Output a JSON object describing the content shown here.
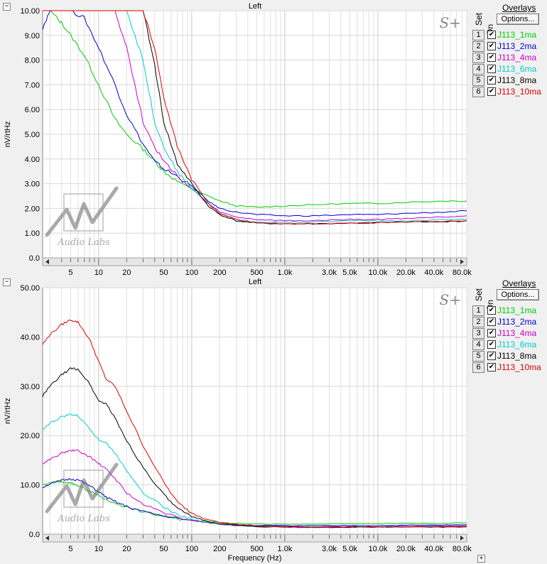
{
  "panels": [
    {
      "title": "Left",
      "collapse_symbol": "−",
      "ylabel": "nV/rtHz",
      "y_ticks": [
        "10.00",
        "9.00",
        "8.00",
        "7.00",
        "6.00",
        "5.00",
        "4.00",
        "3.00",
        "2.00",
        "1.00",
        "0.0"
      ],
      "x_ticks": [
        "5",
        "10",
        "20",
        "50",
        "100",
        "200",
        "500",
        "1.0k",
        "3.0k",
        "5.0k",
        "10.0k",
        "20.0k",
        "40.0k",
        "80.0k"
      ],
      "xlabel": "",
      "brand": "S+",
      "watermark_text": "Audio Labs"
    },
    {
      "title": "Left",
      "collapse_symbol": "−",
      "ylabel": "nV/rtHz",
      "y_ticks": [
        "50.00",
        "40.00",
        "30.00",
        "20.00",
        "10.00",
        "0.0"
      ],
      "x_ticks": [
        "5",
        "10",
        "20",
        "50",
        "100",
        "200",
        "500",
        "1.0k",
        "3.0k",
        "5.0k",
        "10.0k",
        "20.0k",
        "40.0k",
        "80.0k"
      ],
      "xlabel": "Frequency (Hz)",
      "brand": "S+",
      "watermark_text": "Audio Labs"
    }
  ],
  "overlays": {
    "title": "Overlays",
    "set_label": "Set",
    "on_label": "On",
    "options_label": "Options...",
    "check_mark": "✔",
    "sets": [
      {
        "num": "1",
        "name": "J113_1ma",
        "color": "#00cc00"
      },
      {
        "num": "2",
        "name": "J113_2ma",
        "color": "#0000cc"
      },
      {
        "num": "3",
        "name": "J113_4ma",
        "color": "#cc00cc"
      },
      {
        "num": "4",
        "name": "J113_6ma",
        "color": "#00cccc"
      },
      {
        "num": "5",
        "name": "J113_8ma",
        "color": "#000000"
      },
      {
        "num": "6",
        "name": "J113_10ma",
        "color": "#dd0000"
      }
    ]
  },
  "corner_symbol": "+",
  "chart_data": [
    {
      "type": "line",
      "title": "Left",
      "xlabel": "",
      "ylabel": "nV/rtHz",
      "xscale": "log",
      "xlim": [
        2.5,
        90000
      ],
      "ylim": [
        0,
        10
      ],
      "grid": true,
      "legend": "right side panel",
      "x": [
        2.5,
        3,
        4,
        5,
        7,
        10,
        15,
        20,
        30,
        40,
        50,
        70,
        100,
        150,
        200,
        300,
        500,
        1000,
        2000,
        5000,
        10000,
        20000,
        50000,
        90000
      ],
      "series": [
        {
          "name": "J113_1ma",
          "color": "#00cc00",
          "values": [
            10,
            10,
            9.5,
            9.0,
            8.2,
            7.0,
            5.6,
            5.0,
            4.4,
            3.9,
            3.5,
            3.1,
            2.8,
            2.5,
            2.3,
            2.1,
            2.05,
            2.1,
            2.15,
            2.2,
            2.2,
            2.25,
            2.3,
            2.3
          ]
        },
        {
          "name": "J113_2ma",
          "color": "#0000cc",
          "values": [
            9.3,
            10,
            10,
            10,
            9.7,
            8.5,
            7.0,
            5.8,
            4.6,
            3.9,
            3.6,
            3.3,
            2.9,
            2.3,
            2.0,
            1.85,
            1.75,
            1.7,
            1.7,
            1.75,
            1.75,
            1.8,
            1.85,
            1.9
          ]
        },
        {
          "name": "J113_4ma",
          "color": "#cc00cc",
          "values": [
            10,
            10,
            10,
            10,
            10,
            10,
            10,
            8.5,
            5.5,
            4.5,
            3.9,
            3.3,
            2.8,
            2.2,
            1.85,
            1.65,
            1.55,
            1.5,
            1.5,
            1.55,
            1.55,
            1.6,
            1.65,
            1.7
          ]
        },
        {
          "name": "J113_6ma",
          "color": "#00cccc",
          "values": [
            10,
            10,
            10,
            10,
            10,
            10,
            10,
            10,
            8.0,
            5.5,
            4.5,
            3.5,
            2.8,
            2.2,
            1.8,
            1.55,
            1.45,
            1.45,
            1.45,
            1.5,
            1.5,
            1.5,
            1.55,
            1.55
          ]
        },
        {
          "name": "J113_8ma",
          "color": "#000000",
          "values": [
            10,
            10,
            10,
            10,
            10,
            10,
            10,
            10,
            10,
            7.8,
            5.5,
            3.8,
            3.0,
            2.1,
            1.75,
            1.5,
            1.4,
            1.38,
            1.38,
            1.4,
            1.42,
            1.45,
            1.45,
            1.5
          ]
        },
        {
          "name": "J113_10ma",
          "color": "#dd0000",
          "values": [
            10,
            10,
            10,
            10,
            10,
            10,
            10,
            10,
            10,
            8.5,
            6.5,
            4.5,
            3.2,
            2.2,
            1.8,
            1.55,
            1.42,
            1.38,
            1.38,
            1.4,
            1.42,
            1.45,
            1.48,
            1.5
          ]
        }
      ]
    },
    {
      "type": "line",
      "title": "Left",
      "xlabel": "Frequency (Hz)",
      "ylabel": "nV/rtHz",
      "xscale": "log",
      "xlim": [
        2.5,
        90000
      ],
      "ylim": [
        0,
        50
      ],
      "grid": true,
      "legend": "right side panel",
      "x": [
        2.5,
        3,
        4,
        5,
        6,
        8,
        10,
        12,
        15,
        20,
        30,
        50,
        70,
        100,
        150,
        200,
        300,
        500,
        1000,
        2000,
        5000,
        10000,
        20000,
        50000,
        90000
      ],
      "series": [
        {
          "name": "J113_1ma",
          "color": "#00cc00",
          "values": [
            10.0,
            10.3,
            10.6,
            10.4,
            9.8,
            8.8,
            7.8,
            7.0,
            6.3,
            5.5,
            4.5,
            3.6,
            3.1,
            2.8,
            2.6,
            2.4,
            2.2,
            2.1,
            2.0,
            2.05,
            2.1,
            2.15,
            2.2,
            2.2,
            2.3
          ]
        },
        {
          "name": "J113_2ma",
          "color": "#0000cc",
          "values": [
            9.5,
            10.2,
            10.9,
            11.2,
            11.0,
            9.8,
            8.6,
            7.5,
            6.6,
            5.6,
            4.6,
            3.7,
            3.2,
            2.8,
            2.4,
            2.1,
            1.9,
            1.8,
            1.7,
            1.7,
            1.75,
            1.75,
            1.8,
            1.85,
            1.9
          ]
        },
        {
          "name": "J113_4ma",
          "color": "#cc00cc",
          "values": [
            14.3,
            15.2,
            16.4,
            17.0,
            16.9,
            15.7,
            14.3,
            13.2,
            11.3,
            8.4,
            6.0,
            4.4,
            3.4,
            2.8,
            2.3,
            2.0,
            1.8,
            1.65,
            1.55,
            1.5,
            1.55,
            1.55,
            1.6,
            1.65,
            1.7
          ]
        },
        {
          "name": "J113_6ma",
          "color": "#00cccc",
          "values": [
            21.3,
            22.5,
            23.8,
            24.3,
            24.0,
            21.5,
            19.2,
            18.5,
            16.5,
            13.0,
            8.5,
            5.5,
            4.0,
            3.0,
            2.4,
            2.0,
            1.75,
            1.55,
            1.45,
            1.45,
            1.5,
            1.5,
            1.5,
            1.55,
            1.55
          ]
        },
        {
          "name": "J113_8ma",
          "color": "#000000",
          "values": [
            28.0,
            30.0,
            32.3,
            33.6,
            33.5,
            30.5,
            27.0,
            26.5,
            23.5,
            19.0,
            13.5,
            8.0,
            5.2,
            3.5,
            2.6,
            2.1,
            1.8,
            1.55,
            1.4,
            1.38,
            1.4,
            1.42,
            1.45,
            1.45,
            1.5
          ]
        },
        {
          "name": "J113_10ma",
          "color": "#dd0000",
          "values": [
            38.5,
            40.5,
            42.5,
            43.5,
            43.0,
            39.5,
            35.0,
            31.5,
            30.0,
            25.0,
            18.0,
            10.5,
            6.5,
            4.3,
            3.0,
            2.4,
            2.0,
            1.65,
            1.45,
            1.4,
            1.42,
            1.45,
            1.48,
            1.5,
            1.5
          ]
        }
      ]
    }
  ]
}
